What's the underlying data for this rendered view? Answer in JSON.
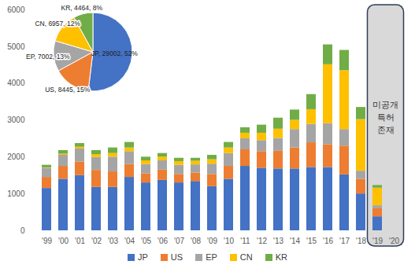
{
  "chart_data": [
    {
      "type": "bar",
      "stacked": true,
      "grid": false,
      "legend": "bottom",
      "categories": [
        "'99",
        "'00",
        "'01",
        "'02",
        "'03",
        "'04",
        "'05",
        "'06",
        "'07",
        "'08",
        "'09",
        "'10",
        "'11",
        "'12",
        "'13",
        "'14",
        "'15",
        "'16",
        "'17",
        "'18",
        "'19",
        "'20"
      ],
      "series": [
        {
          "name": "JP",
          "color": "#4472c4",
          "values": [
            1150,
            1400,
            1500,
            1180,
            1180,
            1450,
            1300,
            1370,
            1300,
            1340,
            1200,
            1400,
            1750,
            1700,
            1680,
            1680,
            1720,
            1720,
            1520,
            1000,
            380,
            null
          ]
        },
        {
          "name": "US",
          "color": "#ed7d31",
          "values": [
            300,
            350,
            370,
            460,
            420,
            350,
            250,
            280,
            230,
            230,
            330,
            350,
            450,
            450,
            480,
            570,
            670,
            620,
            780,
            400,
            220,
            null
          ]
        },
        {
          "name": "EP",
          "color": "#a5a5a5",
          "values": [
            250,
            300,
            350,
            350,
            400,
            350,
            250,
            250,
            250,
            220,
            280,
            350,
            300,
            300,
            350,
            500,
            500,
            570,
            450,
            220,
            80,
            null
          ]
        },
        {
          "name": "CN",
          "color": "#ffc000",
          "values": [
            10,
            30,
            50,
            80,
            100,
            100,
            100,
            100,
            100,
            100,
            120,
            150,
            150,
            200,
            250,
            250,
            400,
            1600,
            1600,
            1400,
            480,
            null
          ]
        },
        {
          "name": "KR",
          "color": "#70ad47",
          "values": [
            70,
            100,
            100,
            110,
            150,
            150,
            100,
            100,
            90,
            80,
            120,
            150,
            150,
            220,
            300,
            280,
            410,
            540,
            550,
            330,
            70,
            null
          ]
        }
      ],
      "ylim": [
        0,
        6000
      ],
      "yticks": [
        0,
        1000,
        2000,
        3000,
        4000,
        5000,
        6000
      ],
      "annotations": [
        "미공개 특허 존재"
      ]
    },
    {
      "type": "pie",
      "data_labels": true,
      "categories": [
        "JP",
        "US",
        "EP",
        "CN",
        "KR"
      ],
      "values": [
        29002,
        8445,
        7002,
        6957,
        4464
      ],
      "value_labels": [
        "JP, 29002, 52%",
        "US, 8445, 15%",
        "EP, 7002, 13%",
        "CN, 6957, 12%",
        "KR, 4464, 8%"
      ],
      "colors": [
        "#4472c4",
        "#ed7d31",
        "#a5a5a5",
        "#ffc000",
        "#70ad47"
      ]
    }
  ]
}
